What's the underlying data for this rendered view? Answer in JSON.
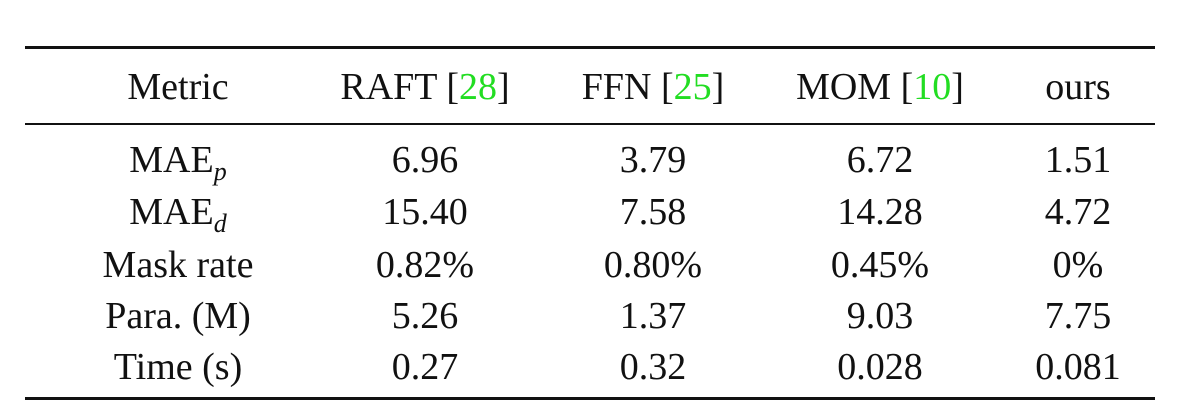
{
  "table": {
    "header": [
      [
        "Metric"
      ],
      [
        "RAFT [",
        "28",
        "]"
      ],
      [
        "FFN [",
        "25",
        "]"
      ],
      [
        "MOM [",
        "10",
        "]"
      ],
      [
        "ours"
      ]
    ],
    "rows": [
      [
        [
          "MAE",
          "p"
        ],
        "6.96",
        "3.79",
        "6.72",
        "1.51"
      ],
      [
        [
          "MAE",
          "d"
        ],
        "15.40",
        "7.58",
        "14.28",
        "4.72"
      ],
      [
        "Mask rate",
        "0.82%",
        "0.80%",
        "0.45%",
        "0%"
      ],
      [
        "Para. (M)",
        "5.26",
        "1.37",
        "9.03",
        "7.75"
      ],
      [
        "Time (s)",
        "0.27",
        "0.32",
        "0.028",
        "0.081"
      ]
    ]
  }
}
